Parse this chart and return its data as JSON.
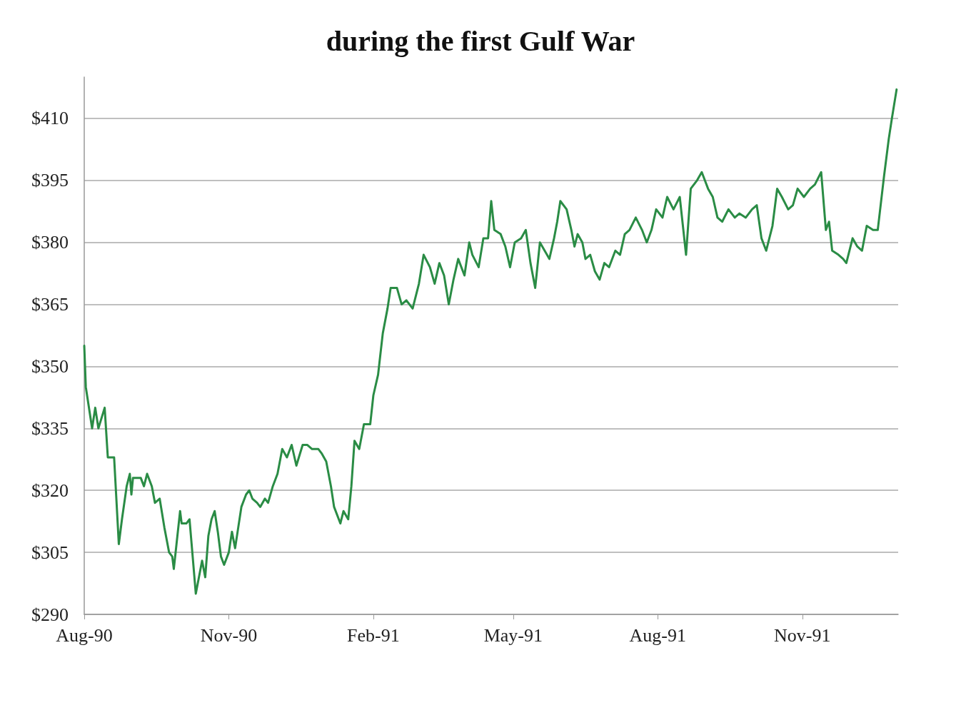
{
  "chart_data": {
    "type": "line",
    "title": "during the first Gulf War",
    "x": [
      "1990-08-01",
      "1990-08-02",
      "1990-08-06",
      "1990-08-08",
      "1990-08-10",
      "1990-08-14",
      "1990-08-16",
      "1990-08-20",
      "1990-08-23",
      "1990-08-25",
      "1990-08-28",
      "1990-08-30",
      "1990-08-31",
      "1990-09-01",
      "1990-09-06",
      "1990-09-08",
      "1990-09-10",
      "1990-09-13",
      "1990-09-15",
      "1990-09-18",
      "1990-09-21",
      "1990-09-24",
      "1990-09-26",
      "1990-09-27",
      "1990-10-01",
      "1990-10-02",
      "1990-10-05",
      "1990-10-07",
      "1990-10-09",
      "1990-10-11",
      "1990-10-14",
      "1990-10-15",
      "1990-10-17",
      "1990-10-19",
      "1990-10-21",
      "1990-10-23",
      "1990-10-25",
      "1990-10-27",
      "1990-10-29",
      "1990-11-01",
      "1990-11-03",
      "1990-11-05",
      "1990-11-07",
      "1990-11-09",
      "1990-11-12",
      "1990-11-14",
      "1990-11-16",
      "1990-11-19",
      "1990-11-21",
      "1990-11-24",
      "1990-11-26",
      "1990-11-29",
      "1990-12-02",
      "1990-12-05",
      "1990-12-08",
      "1990-12-11",
      "1990-12-14",
      "1990-12-18",
      "1990-12-21",
      "1990-12-24",
      "1990-12-28",
      "1990-12-30",
      "1991-01-02",
      "1991-01-05",
      "1991-01-07",
      "1991-01-11",
      "1991-01-13",
      "1991-01-16",
      "1991-01-18",
      "1991-01-20",
      "1991-01-23",
      "1991-01-26",
      "1991-01-30",
      "1991-02-01",
      "1991-02-04",
      "1991-02-07",
      "1991-02-10",
      "1991-02-12",
      "1991-02-16",
      "1991-02-19",
      "1991-02-22",
      "1991-02-26",
      "1991-03-02",
      "1991-03-05",
      "1991-03-09",
      "1991-03-12",
      "1991-03-15",
      "1991-03-18",
      "1991-03-21",
      "1991-03-24",
      "1991-03-27",
      "1991-03-31",
      "1991-04-03",
      "1991-04-05",
      "1991-04-09",
      "1991-04-12",
      "1991-04-15",
      "1991-04-17",
      "1991-04-19",
      "1991-04-23",
      "1991-04-26",
      "1991-04-29",
      "1991-05-02",
      "1991-05-06",
      "1991-05-09",
      "1991-05-12",
      "1991-05-15",
      "1991-05-18",
      "1991-05-21",
      "1991-05-24",
      "1991-05-27",
      "1991-05-29",
      "1991-05-31",
      "1991-06-04",
      "1991-06-07",
      "1991-06-09",
      "1991-06-11",
      "1991-06-14",
      "1991-06-16",
      "1991-06-19",
      "1991-06-22",
      "1991-06-25",
      "1991-06-28",
      "1991-07-01",
      "1991-07-05",
      "1991-07-08",
      "1991-07-11",
      "1991-07-14",
      "1991-07-18",
      "1991-07-22",
      "1991-07-25",
      "1991-07-28",
      "1991-07-31",
      "1991-08-04",
      "1991-08-07",
      "1991-08-11",
      "1991-08-15",
      "1991-08-19",
      "1991-08-22",
      "1991-08-26",
      "1991-08-29",
      "1991-09-02",
      "1991-09-05",
      "1991-09-08",
      "1991-09-11",
      "1991-09-15",
      "1991-09-19",
      "1991-09-22",
      "1991-09-26",
      "1991-09-30",
      "1991-10-03",
      "1991-10-06",
      "1991-10-09",
      "1991-10-13",
      "1991-10-16",
      "1991-10-19",
      "1991-10-23",
      "1991-10-26",
      "1991-10-29",
      "1991-11-02",
      "1991-11-06",
      "1991-11-09",
      "1991-11-13",
      "1991-11-16",
      "1991-11-18",
      "1991-11-20",
      "1991-11-24",
      "1991-11-27",
      "1991-11-29",
      "1991-12-03",
      "1991-12-06",
      "1991-12-09",
      "1991-12-12",
      "1991-12-16",
      "1991-12-19",
      "1991-12-23",
      "1991-12-26",
      "1991-12-28",
      "1991-12-31"
    ],
    "series": [
      {
        "color": "#2a8c45",
        "values": [
          355,
          345,
          335,
          340,
          335,
          340,
          328,
          328,
          307,
          313,
          321,
          324,
          319,
          323,
          323,
          321,
          324,
          321,
          317,
          318,
          311,
          305,
          304,
          301,
          315,
          312,
          312,
          313,
          304,
          295,
          301,
          303,
          299,
          309,
          313,
          315,
          310,
          304,
          302,
          305,
          310,
          306,
          311,
          316,
          319,
          320,
          318,
          317,
          316,
          318,
          317,
          321,
          324,
          330,
          328,
          331,
          326,
          331,
          331,
          330,
          330,
          329,
          327,
          321,
          316,
          312,
          315,
          313,
          321,
          332,
          330,
          336,
          336,
          343,
          348,
          358,
          364,
          369,
          369,
          365,
          366,
          364,
          370,
          377,
          374,
          370,
          375,
          372,
          365,
          371,
          376,
          372,
          380,
          377,
          374,
          381,
          381,
          390,
          383,
          382,
          379,
          374,
          380,
          381,
          383,
          375,
          369,
          380,
          378,
          376,
          381,
          385,
          390,
          388,
          383,
          379,
          382,
          380,
          376,
          377,
          373,
          371,
          375,
          374,
          378,
          377,
          382,
          383,
          386,
          383,
          380,
          383,
          388,
          386,
          391,
          388,
          391,
          377,
          393,
          395,
          397,
          393,
          391,
          386,
          385,
          388,
          386,
          387,
          386,
          388,
          389,
          381,
          378,
          384,
          393,
          391,
          388,
          389,
          393,
          391,
          393,
          394,
          397,
          383,
          385,
          378,
          377,
          376,
          375,
          381,
          379,
          378,
          384,
          383,
          383,
          396,
          405,
          410,
          417
        ]
      }
    ],
    "xlim": [
      "1990-08-01",
      "1992-01-01"
    ],
    "xticks": [
      {
        "value": "1990-08-01",
        "label": "Aug-90"
      },
      {
        "value": "1990-11-01",
        "label": "Nov-90"
      },
      {
        "value": "1991-02-01",
        "label": "Feb-91"
      },
      {
        "value": "1991-05-01",
        "label": "May-91"
      },
      {
        "value": "1991-08-01",
        "label": "Aug-91"
      },
      {
        "value": "1991-11-01",
        "label": "Nov-91"
      }
    ],
    "ylim": [
      290,
      420
    ],
    "yticks": [
      {
        "value": 290,
        "label": "$290"
      },
      {
        "value": 305,
        "label": "$305"
      },
      {
        "value": 320,
        "label": "$320"
      },
      {
        "value": 335,
        "label": "$335"
      },
      {
        "value": 350,
        "label": "$350"
      },
      {
        "value": 365,
        "label": "$365"
      },
      {
        "value": 380,
        "label": "$380"
      },
      {
        "value": 395,
        "label": "$395"
      },
      {
        "value": 410,
        "label": "$410"
      }
    ],
    "grid": "y",
    "line_style": "solid"
  }
}
